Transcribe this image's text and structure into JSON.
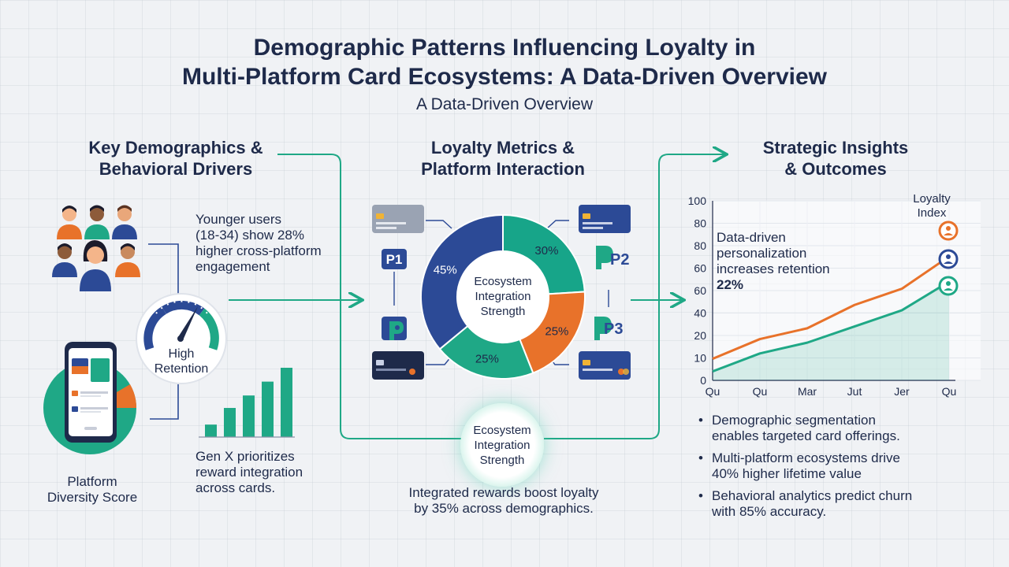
{
  "header": {
    "title_line1": "Demographic Patterns Influencing Loyalty in",
    "title_line2": "Multi-Platform Card Ecosystems: A Data-Driven Overview",
    "subtitle": "A Data-Driven Overview"
  },
  "left": {
    "heading_line1": "Key Demographics &",
    "heading_line2": "Behavioral Drivers",
    "younger_line1": "Younger users",
    "younger_line2": "(18-34) show 28%",
    "younger_line3": "higher cross-platform",
    "younger_line4": "engagement",
    "gauge_line1": "High",
    "gauge_line2": "Retention",
    "genx_line1": "Gen X prioritizes",
    "genx_line2": "reward integration",
    "genx_line3": "across cards.",
    "diversity_line1": "Platform",
    "diversity_line2": "Diversity Score",
    "bar_levels": [
      0.18,
      0.42,
      0.6,
      0.8,
      1.0
    ]
  },
  "middle": {
    "heading_line1": "Loyalty Metrics &",
    "heading_line2": "Platform Interaction",
    "donut_center_line1": "Ecosystem",
    "donut_center_line2": "Integration",
    "donut_center_line3": "Strength",
    "segments": [
      {
        "label": "30%",
        "value": 30,
        "color": "#17a589"
      },
      {
        "label": "25%",
        "value": 25,
        "color": "#e8722a"
      },
      {
        "label": "25%",
        "value": 25,
        "color": "#1fa886"
      },
      {
        "label": "45%",
        "value": 45,
        "color": "#2c4a96"
      }
    ],
    "platforms": {
      "p1": "P1",
      "p2": "P2",
      "p3": "P3"
    },
    "glow_line1": "Ecosystem",
    "glow_line2": "Integration",
    "glow_line3": "Strength",
    "boost_line1": "Integrated rewards boost loyalty",
    "boost_line2": "by 35% across demographics."
  },
  "right": {
    "heading_line1": "Strategic Insights",
    "heading_line2": "& Outcomes",
    "annotation_line1": "Data-driven",
    "annotation_line2": "personalization",
    "annotation_line3": "increases retention",
    "annotation_line4": "22%",
    "legend_line1": "Loyalty",
    "legend_line2": "Index",
    "bullets": [
      {
        "line1": "Demographic segmentation",
        "line2": "enables targeted card offerings."
      },
      {
        "line1": "Multi-platform ecosystems drive",
        "line2": "40% higher lifetime value"
      },
      {
        "line1": "Behavioral analytics predict churn",
        "line2": "with 85% accuracy."
      }
    ]
  },
  "chart_data": {
    "type": "line",
    "categories": [
      "Qu",
      "Qu",
      "Mar",
      "Jut",
      "Jer",
      "Qu"
    ],
    "y_tick_labels": [
      "0",
      "10",
      "20",
      "40",
      "60",
      "60",
      "80",
      "80",
      "100"
    ],
    "ylim": [
      0,
      100
    ],
    "grid": true,
    "series": [
      {
        "color": "#e8722a",
        "values": [
          12,
          23,
          29,
          42,
          51,
          69
        ]
      },
      {
        "color": "#1fa886",
        "values": [
          5,
          15,
          21,
          30,
          39,
          55
        ]
      }
    ]
  },
  "colors": {
    "navy": "#2c4a96",
    "teal": "#1fa886",
    "orange": "#e8722a",
    "text": "#1e2a4a"
  }
}
